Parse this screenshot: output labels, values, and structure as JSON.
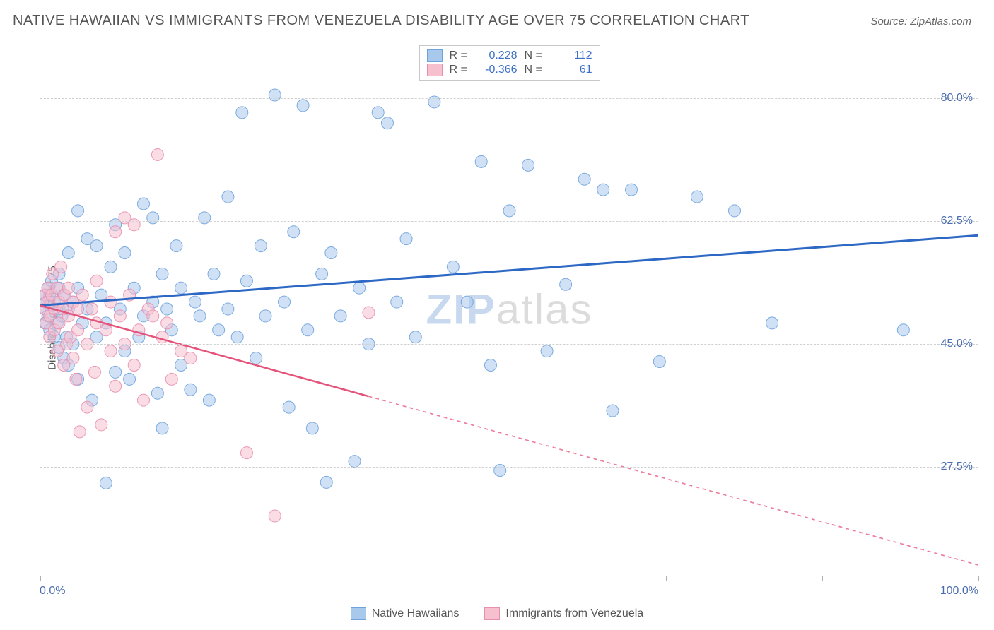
{
  "header": {
    "title": "NATIVE HAWAIIAN VS IMMIGRANTS FROM VENEZUELA DISABILITY AGE OVER 75 CORRELATION CHART",
    "source": "Source: ZipAtlas.com"
  },
  "chart": {
    "type": "scatter",
    "xlim": [
      0,
      100
    ],
    "ylim": [
      12,
      88
    ],
    "x_ticks": [
      0,
      16.67,
      33.33,
      50,
      66.67,
      83.33,
      100
    ],
    "x_min_label": "0.0%",
    "x_max_label": "100.0%",
    "y_grid": [
      {
        "value": 27.5,
        "label": "27.5%"
      },
      {
        "value": 45.0,
        "label": "45.0%"
      },
      {
        "value": 62.5,
        "label": "62.5%"
      },
      {
        "value": 80.0,
        "label": "80.0%"
      }
    ],
    "y_axis_label": "Disability Age Over 75",
    "background_color": "#ffffff",
    "grid_color": "#d0d0d0",
    "axis_color": "#b0b0b0",
    "marker_radius": 8.5,
    "marker_opacity": 0.55,
    "watermark": {
      "zip": "ZIP",
      "atlas": "atlas"
    }
  },
  "series": [
    {
      "name": "Native Hawaiians",
      "color_fill": "#a9c9ec",
      "color_stroke": "#6fa3dd",
      "R": "0.228",
      "N": "112",
      "trend": {
        "x1": 0,
        "y1": 50.5,
        "x2": 100,
        "y2": 60.5,
        "solid_until_x": 100,
        "color": "#2d68c4",
        "width": 3
      },
      "points": [
        [
          0.5,
          50
        ],
        [
          0.5,
          52
        ],
        [
          0.5,
          48
        ],
        [
          0.6,
          51
        ],
        [
          0.8,
          49
        ],
        [
          0.8,
          53
        ],
        [
          1,
          50.5
        ],
        [
          1,
          52
        ],
        [
          1,
          47
        ],
        [
          1.2,
          54
        ],
        [
          1.5,
          46
        ],
        [
          1.5,
          51
        ],
        [
          1.8,
          48
        ],
        [
          2,
          55
        ],
        [
          2,
          50
        ],
        [
          2,
          53
        ],
        [
          2,
          44.5
        ],
        [
          2.3,
          49
        ],
        [
          2.5,
          43
        ],
        [
          2.5,
          52
        ],
        [
          2.8,
          46
        ],
        [
          3,
          58
        ],
        [
          3,
          50
        ],
        [
          3,
          42
        ],
        [
          3.5,
          51
        ],
        [
          3.5,
          45
        ],
        [
          4,
          40
        ],
        [
          4,
          53
        ],
        [
          4,
          64
        ],
        [
          4.5,
          48
        ],
        [
          5,
          60
        ],
        [
          5,
          50
        ],
        [
          5.5,
          37
        ],
        [
          6,
          59
        ],
        [
          6,
          46
        ],
        [
          6.5,
          52
        ],
        [
          7,
          25.2
        ],
        [
          7,
          48
        ],
        [
          7.5,
          56
        ],
        [
          8,
          41
        ],
        [
          8,
          62
        ],
        [
          8.5,
          50
        ],
        [
          9,
          44
        ],
        [
          9,
          58
        ],
        [
          9.5,
          40
        ],
        [
          10,
          53
        ],
        [
          10.5,
          46
        ],
        [
          11,
          65
        ],
        [
          11,
          49
        ],
        [
          12,
          51
        ],
        [
          12,
          63
        ],
        [
          12.5,
          38
        ],
        [
          13,
          33
        ],
        [
          13,
          55
        ],
        [
          13.5,
          50
        ],
        [
          14,
          47
        ],
        [
          14.5,
          59
        ],
        [
          15,
          42
        ],
        [
          15,
          53
        ],
        [
          16,
          38.5
        ],
        [
          16.5,
          51
        ],
        [
          17,
          49
        ],
        [
          17.5,
          63
        ],
        [
          18,
          37
        ],
        [
          18.5,
          55
        ],
        [
          19,
          47
        ],
        [
          20,
          66
        ],
        [
          20,
          50
        ],
        [
          21,
          46
        ],
        [
          21.5,
          78
        ],
        [
          22,
          54
        ],
        [
          23,
          43
        ],
        [
          23.5,
          59
        ],
        [
          24,
          49
        ],
        [
          25,
          80.5
        ],
        [
          26,
          51
        ],
        [
          26.5,
          36
        ],
        [
          27,
          61
        ],
        [
          28,
          79
        ],
        [
          28.5,
          47
        ],
        [
          29,
          33
        ],
        [
          30,
          55
        ],
        [
          30.5,
          25.3
        ],
        [
          31,
          58
        ],
        [
          32,
          49
        ],
        [
          33.5,
          28.3
        ],
        [
          34,
          53
        ],
        [
          35,
          45
        ],
        [
          36,
          78
        ],
        [
          37,
          76.5
        ],
        [
          38,
          51
        ],
        [
          39,
          60
        ],
        [
          40,
          46
        ],
        [
          42,
          79.5
        ],
        [
          44,
          56
        ],
        [
          45.5,
          51
        ],
        [
          47,
          71
        ],
        [
          48,
          42
        ],
        [
          49,
          27
        ],
        [
          50,
          64
        ],
        [
          52,
          70.5
        ],
        [
          54,
          44
        ],
        [
          56,
          53.5
        ],
        [
          58,
          68.5
        ],
        [
          60,
          67
        ],
        [
          61,
          35.5
        ],
        [
          63,
          67
        ],
        [
          66,
          42.5
        ],
        [
          70,
          66
        ],
        [
          74,
          64
        ],
        [
          78,
          48
        ],
        [
          92,
          47
        ]
      ]
    },
    {
      "name": "Immigrants from Venezuela",
      "color_fill": "#f6c0cf",
      "color_stroke": "#e98fae",
      "R": "-0.366",
      "N": "61",
      "trend": {
        "x1": 0,
        "y1": 50.5,
        "x2": 100,
        "y2": 13.5,
        "solid_until_x": 35,
        "color": "#e5537b",
        "width": 2.5,
        "dash": "5,5"
      },
      "points": [
        [
          0.5,
          50
        ],
        [
          0.5,
          52
        ],
        [
          0.6,
          48
        ],
        [
          0.8,
          51
        ],
        [
          0.8,
          53
        ],
        [
          1,
          49
        ],
        [
          1,
          46
        ],
        [
          1.2,
          52
        ],
        [
          1.3,
          55
        ],
        [
          1.5,
          50
        ],
        [
          1.5,
          47
        ],
        [
          1.8,
          53
        ],
        [
          1.8,
          44
        ],
        [
          2,
          51
        ],
        [
          2,
          48
        ],
        [
          2.2,
          56
        ],
        [
          2.4,
          50
        ],
        [
          2.5,
          42
        ],
        [
          2.6,
          52
        ],
        [
          2.8,
          45
        ],
        [
          3,
          49
        ],
        [
          3,
          53
        ],
        [
          3.2,
          46
        ],
        [
          3.5,
          51
        ],
        [
          3.5,
          43
        ],
        [
          3.8,
          40
        ],
        [
          4,
          50
        ],
        [
          4,
          47
        ],
        [
          4.2,
          32.5
        ],
        [
          4.5,
          52
        ],
        [
          5,
          45
        ],
        [
          5,
          36
        ],
        [
          5.5,
          50
        ],
        [
          5.8,
          41
        ],
        [
          6,
          48
        ],
        [
          6,
          54
        ],
        [
          6.5,
          33.5
        ],
        [
          7,
          47
        ],
        [
          7.5,
          44
        ],
        [
          7.5,
          51
        ],
        [
          8,
          61
        ],
        [
          8,
          39
        ],
        [
          8.5,
          49
        ],
        [
          9,
          45
        ],
        [
          9,
          63
        ],
        [
          9.5,
          52
        ],
        [
          10,
          62
        ],
        [
          10,
          42
        ],
        [
          10.5,
          47
        ],
        [
          11,
          37
        ],
        [
          11.5,
          50
        ],
        [
          12,
          49
        ],
        [
          12.5,
          72
        ],
        [
          13,
          46
        ],
        [
          13.5,
          48
        ],
        [
          14,
          40
        ],
        [
          15,
          44
        ],
        [
          16,
          43
        ],
        [
          22,
          29.5
        ],
        [
          25,
          20.5
        ],
        [
          35,
          49.5
        ]
      ]
    }
  ],
  "legend_top": {
    "R_label": "R =",
    "N_label": "N ="
  }
}
